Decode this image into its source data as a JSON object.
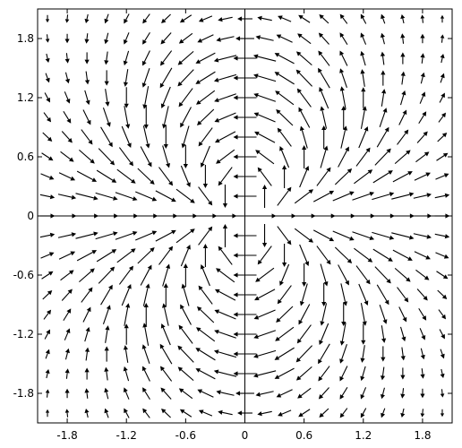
{
  "chart_data": {
    "type": "quiver",
    "title": "",
    "xlabel": "",
    "ylabel": "",
    "field": {
      "u": "x^2 - y^2",
      "v": "2*x*y",
      "mode": "inverse"
    },
    "grid_samples": 21,
    "xlim": [
      -2.1,
      2.1
    ],
    "ylim": [
      -2.1,
      2.1
    ],
    "x_ticks": [
      -1.8,
      -1.2,
      -0.6,
      0,
      0.6,
      1.2,
      1.8
    ],
    "y_ticks": [
      -1.8,
      -1.2,
      -0.6,
      0,
      0.6,
      1.2,
      1.8
    ],
    "x_tick_labels": [
      "-1.8",
      "-1.2",
      "-0.6",
      "0",
      "0.6",
      "1.2",
      "1.8"
    ],
    "y_tick_labels": [
      "-1.8",
      "-1.2",
      "-0.6",
      "0",
      "0.6",
      "1.2",
      "1.8"
    ],
    "grid": false,
    "axes_cross_at_origin": true,
    "arrow_color": "#000000"
  }
}
